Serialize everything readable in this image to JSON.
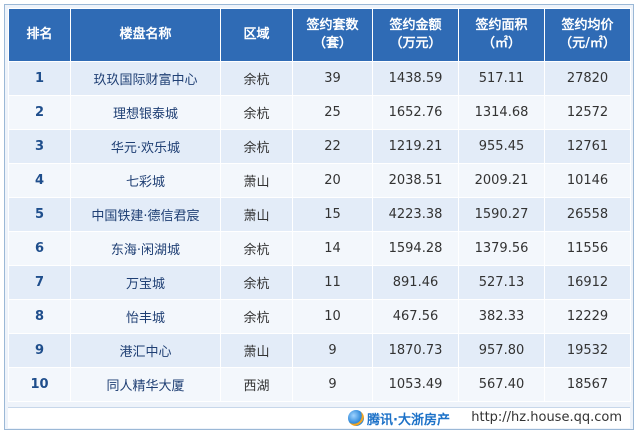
{
  "table": {
    "headers": [
      [
        "排名"
      ],
      [
        "楼盘名称"
      ],
      [
        "区域"
      ],
      [
        "签约套数",
        "（套）"
      ],
      [
        "签约金额",
        "（万元）"
      ],
      [
        "签约面积",
        "（㎡）"
      ],
      [
        "签约均价",
        "（元/㎡）"
      ]
    ],
    "rows": [
      [
        "1",
        "玖玖国际财富中心",
        "余杭",
        "39",
        "1438.59",
        "517.11",
        "27820"
      ],
      [
        "2",
        "理想银泰城",
        "余杭",
        "25",
        "1652.76",
        "1314.68",
        "12572"
      ],
      [
        "3",
        "华元·欢乐城",
        "余杭",
        "22",
        "1219.21",
        "955.45",
        "12761"
      ],
      [
        "4",
        "七彩城",
        "萧山",
        "20",
        "2038.51",
        "2009.21",
        "10146"
      ],
      [
        "5",
        "中国铁建·德信君宸",
        "萧山",
        "15",
        "4223.38",
        "1590.27",
        "26558"
      ],
      [
        "6",
        "东海·闲湖城",
        "余杭",
        "14",
        "1594.28",
        "1379.56",
        "11556"
      ],
      [
        "7",
        "万宝城",
        "余杭",
        "11",
        "891.46",
        "527.13",
        "16912"
      ],
      [
        "8",
        "怡丰城",
        "余杭",
        "10",
        "467.56",
        "382.33",
        "12229"
      ],
      [
        "9",
        "港汇中心",
        "萧山",
        "9",
        "1870.73",
        "957.80",
        "19532"
      ],
      [
        "10",
        "同人精华大厦",
        "西湖",
        "9",
        "1053.49",
        "567.40",
        "18567"
      ]
    ]
  },
  "footer": {
    "logo_text": "腾讯·大浙房产",
    "url": "http://hz.house.qq.com"
  },
  "colors": {
    "header_bg": "#2f6bb5",
    "row_bg": "#e3ecf8",
    "row_alt_bg": "#f3f7fc",
    "border": "#9bb8d6"
  }
}
